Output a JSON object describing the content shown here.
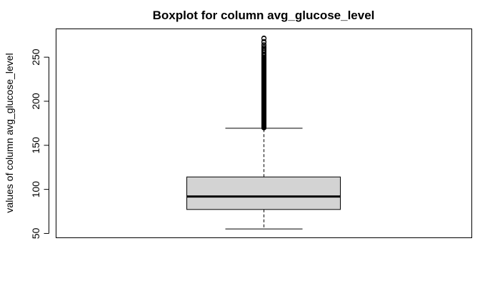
{
  "chart_data": {
    "type": "boxplot",
    "title": "Boxplot for column avg_glucose_level",
    "xlabel": "",
    "ylabel": "values of column avg_glucose_level",
    "ylim": [
      50,
      275
    ],
    "yticks": [
      50,
      100,
      150,
      200,
      250
    ],
    "grid": false,
    "box": {
      "lower_whisker": 55.1,
      "q1": 77.2,
      "median": 91.9,
      "q3": 114.1,
      "upper_whisker": 169.4
    },
    "outliers_range": [
      169.7,
      271.7
    ],
    "outlier_style": "dense open circles spanning the range above the upper whisker",
    "colors": {
      "box_fill": "#d3d3d3",
      "line": "#000000"
    }
  }
}
